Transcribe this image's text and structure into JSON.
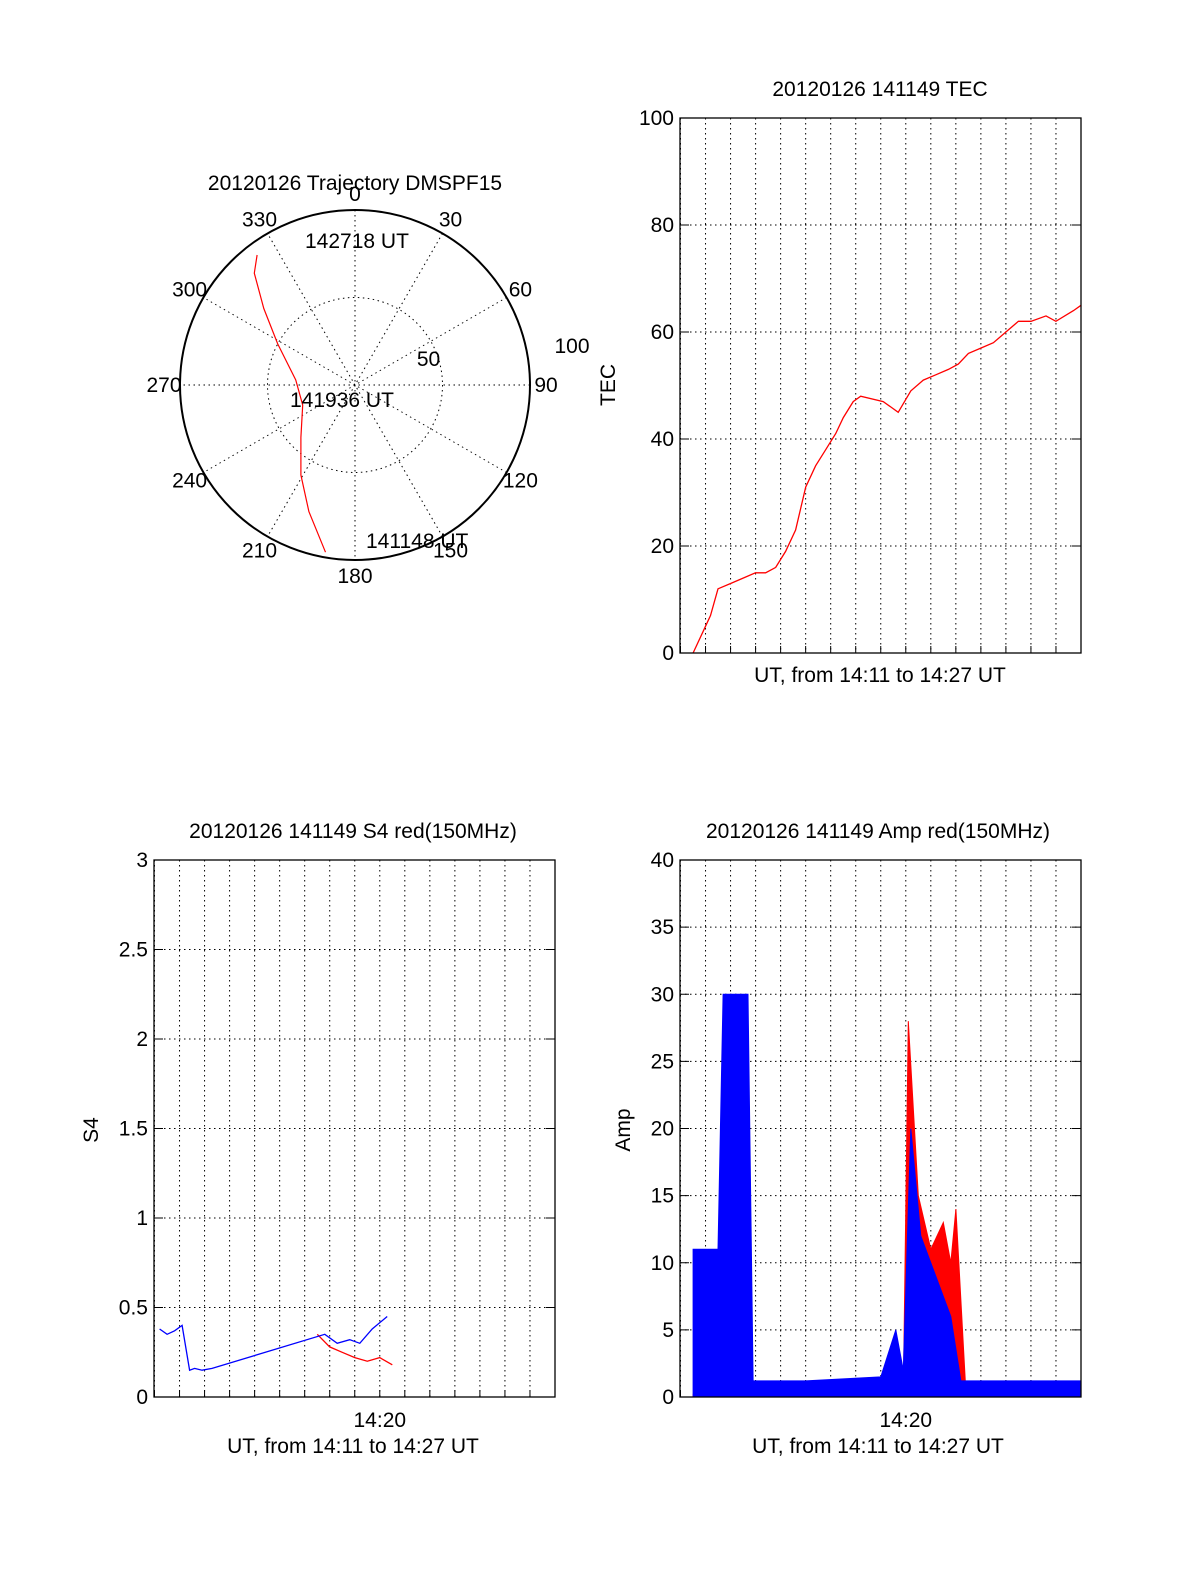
{
  "colors": {
    "red": "#ff0000",
    "blue": "#0000ff",
    "axis": "#000000",
    "background": "#ffffff"
  },
  "chart_data": [
    {
      "type": "polar",
      "title": "20120126 Trajectory DMSPF15",
      "azimuth_labels": [
        "0",
        "30",
        "60",
        "90",
        "120",
        "150",
        "180",
        "210",
        "240",
        "270",
        "300",
        "330"
      ],
      "radial_labels": [
        "50",
        "100"
      ],
      "series": [
        {
          "color": "red",
          "points": [
            {
              "az": 190,
              "zen": 97
            },
            {
              "az": 200,
              "zen": 77
            },
            {
              "az": 211,
              "zen": 60
            },
            {
              "az": 226,
              "zen": 43
            },
            {
              "az": 249,
              "zen": 32
            },
            {
              "az": 275,
              "zen": 34
            },
            {
              "az": 298,
              "zen": 50
            },
            {
              "az": 310,
              "zen": 68
            },
            {
              "az": 318,
              "zen": 86
            },
            {
              "az": 323,
              "zen": 93
            }
          ]
        }
      ],
      "annotations": [
        "142718 UT",
        "141936 UT",
        "141148 UT"
      ]
    },
    {
      "type": "line",
      "title": "20120126 141149 TEC",
      "xlabel": "UT, from 14:11 to 14:27 UT",
      "ylabel": "TEC",
      "xlim": [
        14.183,
        14.45
      ],
      "ylim": [
        0,
        100
      ],
      "yticks": [
        "0",
        "20",
        "40",
        "60",
        "80",
        "100"
      ],
      "grid": true,
      "series": [
        {
          "color": "red",
          "x": [
            14.1917,
            14.2,
            14.2033,
            14.2083,
            14.2167,
            14.225,
            14.2333,
            14.24,
            14.2467,
            14.2533,
            14.26,
            14.2667,
            14.2733,
            14.28,
            14.2867,
            14.2917,
            14.2983,
            14.3033,
            14.3183,
            14.3233,
            14.3283,
            14.3367,
            14.345,
            14.3533,
            14.3617,
            14.3683,
            14.375,
            14.3833,
            14.3917,
            14.4,
            14.4083,
            14.4167,
            14.4267,
            14.4333,
            14.445,
            14.45
          ],
          "y": [
            0,
            5,
            7,
            12,
            13,
            14,
            15,
            15,
            16,
            19,
            23,
            31,
            35,
            38,
            41,
            44,
            47,
            48,
            47,
            46,
            45,
            49,
            51,
            52,
            53,
            54,
            56,
            57,
            58,
            60,
            62,
            62,
            63,
            62,
            64,
            65
          ]
        }
      ]
    },
    {
      "type": "line",
      "title": "20120126 141149 S4 red(150MHz)",
      "xlabel": "UT, from 14:11 to 14:27 UT",
      "ylabel": "S4",
      "xlim": [
        14.183,
        14.45
      ],
      "ylim": [
        0,
        3
      ],
      "yticks": [
        "0",
        "0.5",
        "1",
        "1.5",
        "2",
        "2.5",
        "3"
      ],
      "xticks": [
        "14:20"
      ],
      "grid": true,
      "series": [
        {
          "color": "red",
          "x": [
            14.2917,
            14.3,
            14.3083,
            14.3167,
            14.325,
            14.3333,
            14.3417
          ],
          "y": [
            0.35,
            0.28,
            0.25,
            0.22,
            0.2,
            0.22,
            0.18
          ]
        },
        {
          "color": "blue",
          "x": [
            14.1867,
            14.1917,
            14.1967,
            14.2017,
            14.2067,
            14.21,
            14.215,
            14.2217,
            14.2967,
            14.305,
            14.3133,
            14.32,
            14.3283,
            14.3383
          ],
          "y": [
            0.38,
            0.35,
            0.37,
            0.4,
            0.15,
            0.16,
            0.15,
            0.16,
            0.35,
            0.3,
            0.32,
            0.3,
            0.38,
            0.45
          ]
        }
      ]
    },
    {
      "type": "area",
      "title": "20120126 141149 Amp red(150MHz)",
      "xlabel": "UT, from 14:11 to 14:27 UT",
      "ylabel": "Amp",
      "xlim": [
        14.183,
        14.45
      ],
      "ylim": [
        0,
        40
      ],
      "yticks": [
        "0",
        "5",
        "10",
        "15",
        "20",
        "25",
        "30",
        "35",
        "40"
      ],
      "xticks": [
        "14:20"
      ],
      "grid": true,
      "series": [
        {
          "color": "red",
          "x": [
            14.1917,
            14.2083,
            14.2283,
            14.3317,
            14.335,
            14.3417,
            14.35,
            14.3583,
            14.3633,
            14.3667,
            14.3733,
            14.45
          ],
          "y": [
            0.2,
            0.2,
            0.2,
            0.2,
            28,
            15,
            11,
            13,
            10,
            14,
            0.5,
            0.5
          ]
        },
        {
          "color": "blue",
          "x": [
            14.1917,
            14.2083,
            14.2117,
            14.2283,
            14.2317,
            14.2667,
            14.3167,
            14.3267,
            14.3317,
            14.3367,
            14.3433,
            14.3533,
            14.3633,
            14.37,
            14.45
          ],
          "y": [
            11,
            11,
            30,
            30,
            1.2,
            1.2,
            1.5,
            5,
            2,
            20,
            12,
            9,
            6,
            1.2,
            1.2
          ]
        }
      ]
    }
  ]
}
